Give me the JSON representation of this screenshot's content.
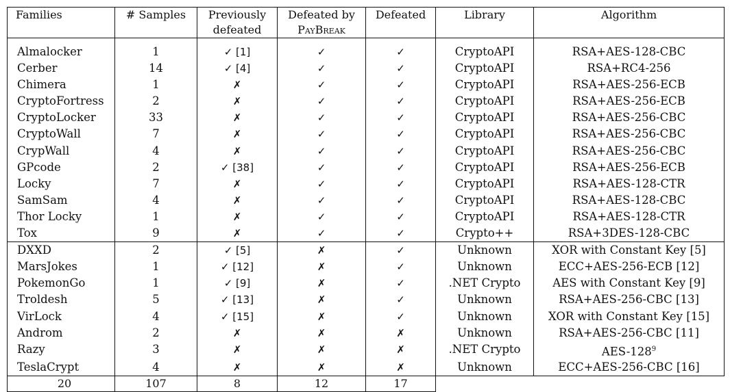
{
  "headers": {
    "families": "Families",
    "samples": "# Samples",
    "previously_line1": "Previously",
    "previously_line2": "defeated",
    "defeated_by_line1": "Defeated by",
    "defeated_by_line2": "PayBreak",
    "defeated": "Defeated",
    "library": "Library",
    "algorithm": "Algorithm"
  },
  "symbols": {
    "check": "✓",
    "cross": "✗"
  },
  "rows": [
    {
      "family": "Almalocker",
      "samples": "1",
      "prev": "✓ [1]",
      "paybreak": "✓",
      "defeated": "✓",
      "library": "CryptoAPI",
      "algorithm": "RSA+AES-128-CBC"
    },
    {
      "family": "Cerber",
      "samples": "14",
      "prev": "✓ [4]",
      "paybreak": "✓",
      "defeated": "✓",
      "library": "CryptoAPI",
      "algorithm": "RSA+RC4-256"
    },
    {
      "family": "Chimera",
      "samples": "1",
      "prev": "✗",
      "paybreak": "✓",
      "defeated": "✓",
      "library": "CryptoAPI",
      "algorithm": "RSA+AES-256-ECB"
    },
    {
      "family": "CryptoFortress",
      "samples": "2",
      "prev": "✗",
      "paybreak": "✓",
      "defeated": "✓",
      "library": "CryptoAPI",
      "algorithm": "RSA+AES-256-ECB"
    },
    {
      "family": "CryptoLocker",
      "samples": "33",
      "prev": "✗",
      "paybreak": "✓",
      "defeated": "✓",
      "library": "CryptoAPI",
      "algorithm": "RSA+AES-256-CBC"
    },
    {
      "family": "CryptoWall",
      "samples": "7",
      "prev": "✗",
      "paybreak": "✓",
      "defeated": "✓",
      "library": "CryptoAPI",
      "algorithm": "RSA+AES-256-CBC"
    },
    {
      "family": "CrypWall",
      "samples": "4",
      "prev": "✗",
      "paybreak": "✓",
      "defeated": "✓",
      "library": "CryptoAPI",
      "algorithm": "RSA+AES-256-CBC"
    },
    {
      "family": "GPcode",
      "samples": "2",
      "prev": "✓ [38]",
      "paybreak": "✓",
      "defeated": "✓",
      "library": "CryptoAPI",
      "algorithm": "RSA+AES-256-ECB"
    },
    {
      "family": "Locky",
      "samples": "7",
      "prev": "✗",
      "paybreak": "✓",
      "defeated": "✓",
      "library": "CryptoAPI",
      "algorithm": "RSA+AES-128-CTR"
    },
    {
      "family": "SamSam",
      "samples": "4",
      "prev": "✗",
      "paybreak": "✓",
      "defeated": "✓",
      "library": "CryptoAPI",
      "algorithm": "RSA+AES-128-CBC"
    },
    {
      "family": "Thor Locky",
      "samples": "1",
      "prev": "✗",
      "paybreak": "✓",
      "defeated": "✓",
      "library": "CryptoAPI",
      "algorithm": "RSA+AES-128-CTR"
    },
    {
      "family": "Tox",
      "samples": "9",
      "prev": "✗",
      "paybreak": "✓",
      "defeated": "✓",
      "library": "Crypto++",
      "algorithm": "RSA+3DES-128-CBC"
    },
    {
      "family": "DXXD",
      "samples": "2",
      "prev": "✓ [5]",
      "paybreak": "✗",
      "defeated": "✓",
      "library": "Unknown",
      "algorithm": "XOR with Constant Key [5]"
    },
    {
      "family": "MarsJokes",
      "samples": "1",
      "prev": "✓ [12]",
      "paybreak": "✗",
      "defeated": "✓",
      "library": "Unknown",
      "algorithm": "ECC+AES-256-ECB [12]"
    },
    {
      "family": "PokemonGo",
      "samples": "1",
      "prev": "✓ [9]",
      "paybreak": "✗",
      "defeated": "✓",
      "library": ".NET Crypto",
      "algorithm": "AES with Constant Key  [9]"
    },
    {
      "family": "Troldesh",
      "samples": "5",
      "prev": "✓ [13]",
      "paybreak": "✗",
      "defeated": "✓",
      "library": "Unknown",
      "algorithm": "RSA+AES-256-CBC [13]"
    },
    {
      "family": "VirLock",
      "samples": "4",
      "prev": "✓ [15]",
      "paybreak": "✗",
      "defeated": "✓",
      "library": "Unknown",
      "algorithm": "XOR with Constant Key [15]"
    },
    {
      "family": "Androm",
      "samples": "2",
      "prev": "✗",
      "paybreak": "✗",
      "defeated": "✗",
      "library": "Unknown",
      "algorithm": "RSA+AES-256-CBC [11]"
    },
    {
      "family": "Razy",
      "samples": "3",
      "prev": "✗",
      "paybreak": "✗",
      "defeated": "✗",
      "library": ".NET Crypto",
      "algorithm": "AES-128",
      "algorithm_sup": "9"
    },
    {
      "family": "TeslaCrypt",
      "samples": "4",
      "prev": "✗",
      "paybreak": "✗",
      "defeated": "✗",
      "library": "Unknown",
      "algorithm": "ECC+AES-256-CBC [16]"
    }
  ],
  "totals": {
    "families": "20",
    "samples": "107",
    "prev": "8",
    "paybreak": "12",
    "defeated": "17"
  }
}
